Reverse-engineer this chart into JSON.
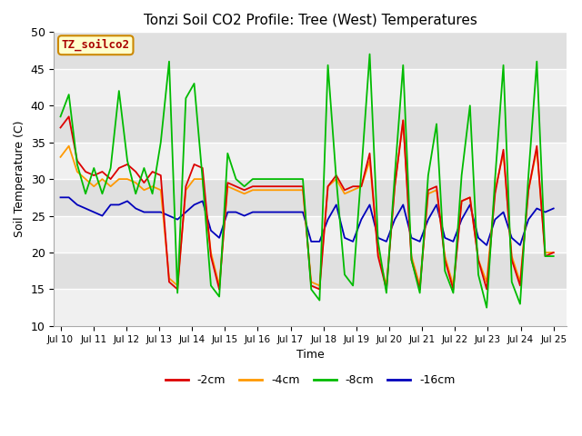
{
  "title": "Tonzi Soil CO2 Profile: Tree (West) Temperatures",
  "xlabel": "Time",
  "ylabel": "Soil Temperature (C)",
  "ylim": [
    10,
    50
  ],
  "background_color": "#ffffff",
  "plot_bg_color": "#e8e8e8",
  "annotation_label": "TZ_soilco2",
  "annotation_color": "#aa0000",
  "annotation_bg": "#ffffcc",
  "annotation_border": "#cc8800",
  "x_tick_labels": [
    "Jul 10",
    "Jul 11",
    "Jul 12",
    "Jul 13",
    "Jul 14",
    "Jul 15",
    "Jul 16",
    "Jul 17",
    "Jul 18",
    "Jul 19",
    "Jul 20",
    "Jul 21",
    "Jul 22",
    "Jul 23",
    "Jul 24",
    "Jul 25"
  ],
  "series": {
    "2cm": {
      "color": "#dd0000",
      "label": "-2cm",
      "data": [
        37.0,
        38.5,
        32.5,
        31.0,
        30.5,
        31.0,
        30.0,
        31.5,
        32.0,
        31.0,
        29.5,
        31.0,
        30.5,
        16.0,
        15.0,
        29.0,
        32.0,
        31.5,
        19.5,
        15.0,
        29.5,
        29.0,
        28.5,
        29.0,
        29.0,
        29.0,
        29.0,
        29.0,
        29.0,
        29.0,
        15.5,
        15.0,
        29.0,
        30.5,
        28.5,
        29.0,
        29.0,
        33.5,
        19.5,
        15.0,
        29.0,
        38.0,
        19.0,
        15.0,
        28.5,
        29.0,
        19.0,
        15.0,
        27.0,
        27.5,
        19.0,
        15.0,
        28.0,
        34.0,
        19.0,
        15.5,
        28.5,
        34.5,
        19.5,
        20.0
      ]
    },
    "4cm": {
      "color": "#ff9900",
      "label": "-4cm",
      "data": [
        33.0,
        34.5,
        31.0,
        30.0,
        29.0,
        30.0,
        29.0,
        30.0,
        30.0,
        29.5,
        28.5,
        29.0,
        28.5,
        16.5,
        15.5,
        28.5,
        30.0,
        30.0,
        20.0,
        15.5,
        29.0,
        28.5,
        28.0,
        28.5,
        28.5,
        28.5,
        28.5,
        28.5,
        28.5,
        28.5,
        16.0,
        15.5,
        29.0,
        30.0,
        28.0,
        28.5,
        29.0,
        32.5,
        20.0,
        15.5,
        29.0,
        38.0,
        19.5,
        15.5,
        28.0,
        28.5,
        19.5,
        15.5,
        27.0,
        27.5,
        19.0,
        16.0,
        28.5,
        33.5,
        19.5,
        16.0,
        28.5,
        34.0,
        20.0,
        20.0
      ]
    },
    "8cm": {
      "color": "#00bb00",
      "label": "-8cm",
      "data": [
        38.5,
        41.5,
        32.0,
        28.0,
        31.5,
        28.0,
        31.5,
        42.0,
        32.5,
        28.0,
        31.5,
        28.0,
        35.0,
        46.0,
        14.5,
        41.0,
        43.0,
        30.0,
        15.5,
        14.0,
        33.5,
        30.0,
        29.0,
        30.0,
        30.0,
        30.0,
        30.0,
        30.0,
        30.0,
        30.0,
        15.0,
        13.5,
        45.5,
        30.0,
        17.0,
        15.5,
        31.0,
        47.0,
        21.5,
        14.5,
        30.5,
        45.5,
        19.0,
        14.5,
        30.5,
        37.5,
        17.5,
        14.5,
        30.5,
        40.0,
        17.0,
        12.5,
        30.0,
        45.5,
        16.0,
        13.0,
        30.5,
        46.0,
        19.5,
        19.5
      ]
    },
    "16cm": {
      "color": "#0000bb",
      "label": "-16cm",
      "data": [
        27.5,
        27.5,
        26.5,
        26.0,
        25.5,
        25.0,
        26.5,
        26.5,
        27.0,
        26.0,
        25.5,
        25.5,
        25.5,
        25.0,
        24.5,
        25.5,
        26.5,
        27.0,
        23.0,
        22.0,
        25.5,
        25.5,
        25.0,
        25.5,
        25.5,
        25.5,
        25.5,
        25.5,
        25.5,
        25.5,
        21.5,
        21.5,
        24.5,
        26.5,
        22.0,
        21.5,
        24.5,
        26.5,
        22.0,
        21.5,
        24.5,
        26.5,
        22.0,
        21.5,
        24.5,
        26.5,
        22.0,
        21.5,
        24.5,
        26.5,
        22.0,
        21.0,
        24.5,
        25.5,
        22.0,
        21.0,
        24.5,
        26.0,
        25.5,
        26.0
      ]
    }
  }
}
